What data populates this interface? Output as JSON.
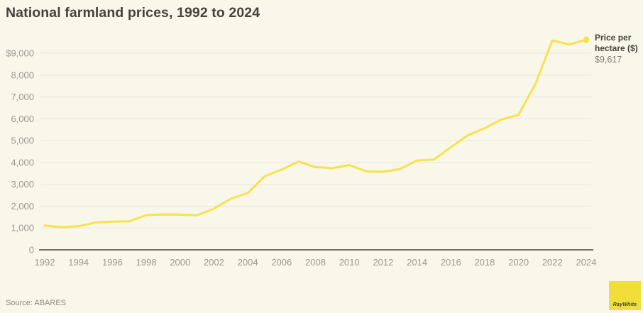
{
  "header": {
    "title": "National farmland prices, 1992 to 2024"
  },
  "legend": {
    "label": "Price per hectare ($)",
    "value": "$9,617"
  },
  "footer": {
    "source": "Source: ABARES",
    "logo": "RayWhite"
  },
  "colors": {
    "background": "#f9f6ea",
    "line": "#f7e24e",
    "grid": "#e9e6d9",
    "axis": "#45443c",
    "tick_label": "#9b9a90",
    "title": "#45443c",
    "legend_label": "#45443c",
    "legend_value": "#7b7a71",
    "source": "#8b8a80",
    "logo_bg": "#f0df3a",
    "logo_text": "#3f3e30"
  },
  "chart_data": {
    "type": "line",
    "title": "National farmland prices, 1992 to 2024",
    "xlabel": "",
    "ylabel": "Price per hectare ($)",
    "grid": "horizontal",
    "legend_position": "right-end-of-line",
    "xlim": [
      1992,
      2024
    ],
    "ylim": [
      0,
      9700
    ],
    "x_ticks": [
      1992,
      1994,
      1996,
      1998,
      2000,
      2002,
      2004,
      2006,
      2008,
      2010,
      2012,
      2014,
      2016,
      2018,
      2020,
      2022,
      2024
    ],
    "y_ticks": [
      0,
      1000,
      2000,
      3000,
      4000,
      5000,
      6000,
      7000,
      8000,
      9000
    ],
    "y_tick_labels": [
      "0",
      "1,000",
      "2,000",
      "3,000",
      "4,000",
      "5,000",
      "6,000",
      "7,000",
      "8,000",
      "$9,000"
    ],
    "end_label_value": "$9,617",
    "series": [
      {
        "name": "Price per hectare ($)",
        "x": [
          1992,
          1993,
          1994,
          1995,
          1996,
          1997,
          1998,
          1999,
          2000,
          2001,
          2002,
          2003,
          2004,
          2005,
          2006,
          2007,
          2008,
          2009,
          2010,
          2011,
          2012,
          2013,
          2014,
          2015,
          2016,
          2017,
          2018,
          2019,
          2020,
          2021,
          2022,
          2023,
          2024
        ],
        "values": [
          1110,
          1040,
          1080,
          1250,
          1290,
          1310,
          1590,
          1620,
          1610,
          1580,
          1880,
          2340,
          2600,
          3370,
          3670,
          4040,
          3790,
          3740,
          3880,
          3590,
          3570,
          3700,
          4090,
          4130,
          4700,
          5240,
          5570,
          5970,
          6180,
          7600,
          9580,
          9400,
          9617
        ]
      }
    ]
  }
}
